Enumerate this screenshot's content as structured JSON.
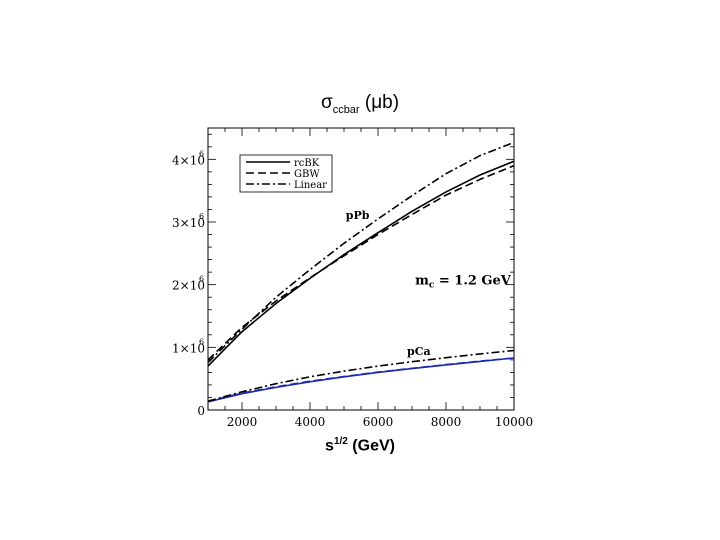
{
  "chart_data": {
    "type": "line",
    "title": {
      "main": "σ",
      "sub": "ccbar",
      "unit": " (μb)"
    },
    "xlabel": {
      "main": "s",
      "sup": "1/2",
      "unit": " (GeV)"
    },
    "xlim": [
      1000,
      10000
    ],
    "ylim": [
      0,
      4500000
    ],
    "x_ticks": [
      {
        "value": 2000,
        "label": "2000"
      },
      {
        "value": 4000,
        "label": "4000"
      },
      {
        "value": 6000,
        "label": "6000"
      },
      {
        "value": 8000,
        "label": "8000"
      },
      {
        "value": 10000,
        "label": "10000"
      }
    ],
    "y_ticks": [
      {
        "value": 0,
        "label": "0",
        "exp": ""
      },
      {
        "value": 1000000,
        "label": "1×10",
        "exp": "6"
      },
      {
        "value": 2000000,
        "label": "2×10",
        "exp": "6"
      },
      {
        "value": 3000000,
        "label": "3×10",
        "exp": "6"
      },
      {
        "value": 4000000,
        "label": "4×10",
        "exp": "6"
      }
    ],
    "grid": false,
    "legend": {
      "position": "top-left"
    },
    "annotations": [
      {
        "text": "pPb",
        "x": 5400,
        "y": 3050000
      },
      {
        "text": "pCa",
        "x": 7200,
        "y": 880000
      },
      {
        "text": "m",
        "sub": "c",
        "rest": " = 1.2 GeV",
        "x": 8500,
        "y": 2000000
      }
    ],
    "series": [
      {
        "name": "rcBK",
        "group": "pPb",
        "dash": "solid",
        "color": "#000000",
        "x": [
          1000,
          2000,
          3000,
          4000,
          5000,
          6000,
          7000,
          8000,
          9000,
          10000
        ],
        "y": [
          700000,
          1250000,
          1700000,
          2100000,
          2480000,
          2830000,
          3170000,
          3480000,
          3750000,
          3970000
        ]
      },
      {
        "name": "GBW",
        "group": "pPb",
        "dash": "dash",
        "color": "#000000",
        "x": [
          1000,
          2000,
          3000,
          4000,
          5000,
          6000,
          7000,
          8000,
          9000,
          10000
        ],
        "y": [
          800000,
          1320000,
          1740000,
          2110000,
          2460000,
          2800000,
          3120000,
          3430000,
          3680000,
          3900000
        ]
      },
      {
        "name": "Linear",
        "group": "pPb",
        "dash": "dashdot",
        "color": "#000000",
        "x": [
          1000,
          2000,
          3000,
          4000,
          5000,
          6000,
          7000,
          8000,
          9000,
          10000
        ],
        "y": [
          760000,
          1290000,
          1800000,
          2240000,
          2660000,
          3050000,
          3420000,
          3770000,
          4060000,
          4270000
        ]
      },
      {
        "name": "rcBK",
        "group": "pCa",
        "dash": "solid",
        "color": "#1b2ab0",
        "x": [
          1000,
          2000,
          3000,
          4000,
          5000,
          6000,
          7000,
          8000,
          9000,
          10000
        ],
        "y": [
          130000,
          260000,
          360000,
          450000,
          530000,
          600000,
          660000,
          720000,
          775000,
          830000
        ]
      },
      {
        "name": "GBW",
        "group": "pCa",
        "dash": "dash",
        "color": "#1b2ab0",
        "x": [
          1000,
          2000,
          3000,
          4000,
          5000,
          6000,
          7000,
          8000,
          9000,
          10000
        ],
        "y": [
          140000,
          270000,
          370000,
          460000,
          535000,
          605000,
          665000,
          725000,
          780000,
          830000
        ]
      },
      {
        "name": "Linear",
        "group": "pCa",
        "dash": "dashdot",
        "color": "#000000",
        "x": [
          1000,
          2000,
          3000,
          4000,
          5000,
          6000,
          7000,
          8000,
          9000,
          10000
        ],
        "y": [
          140000,
          290000,
          420000,
          530000,
          620000,
          700000,
          770000,
          835000,
          895000,
          950000
        ]
      }
    ]
  }
}
